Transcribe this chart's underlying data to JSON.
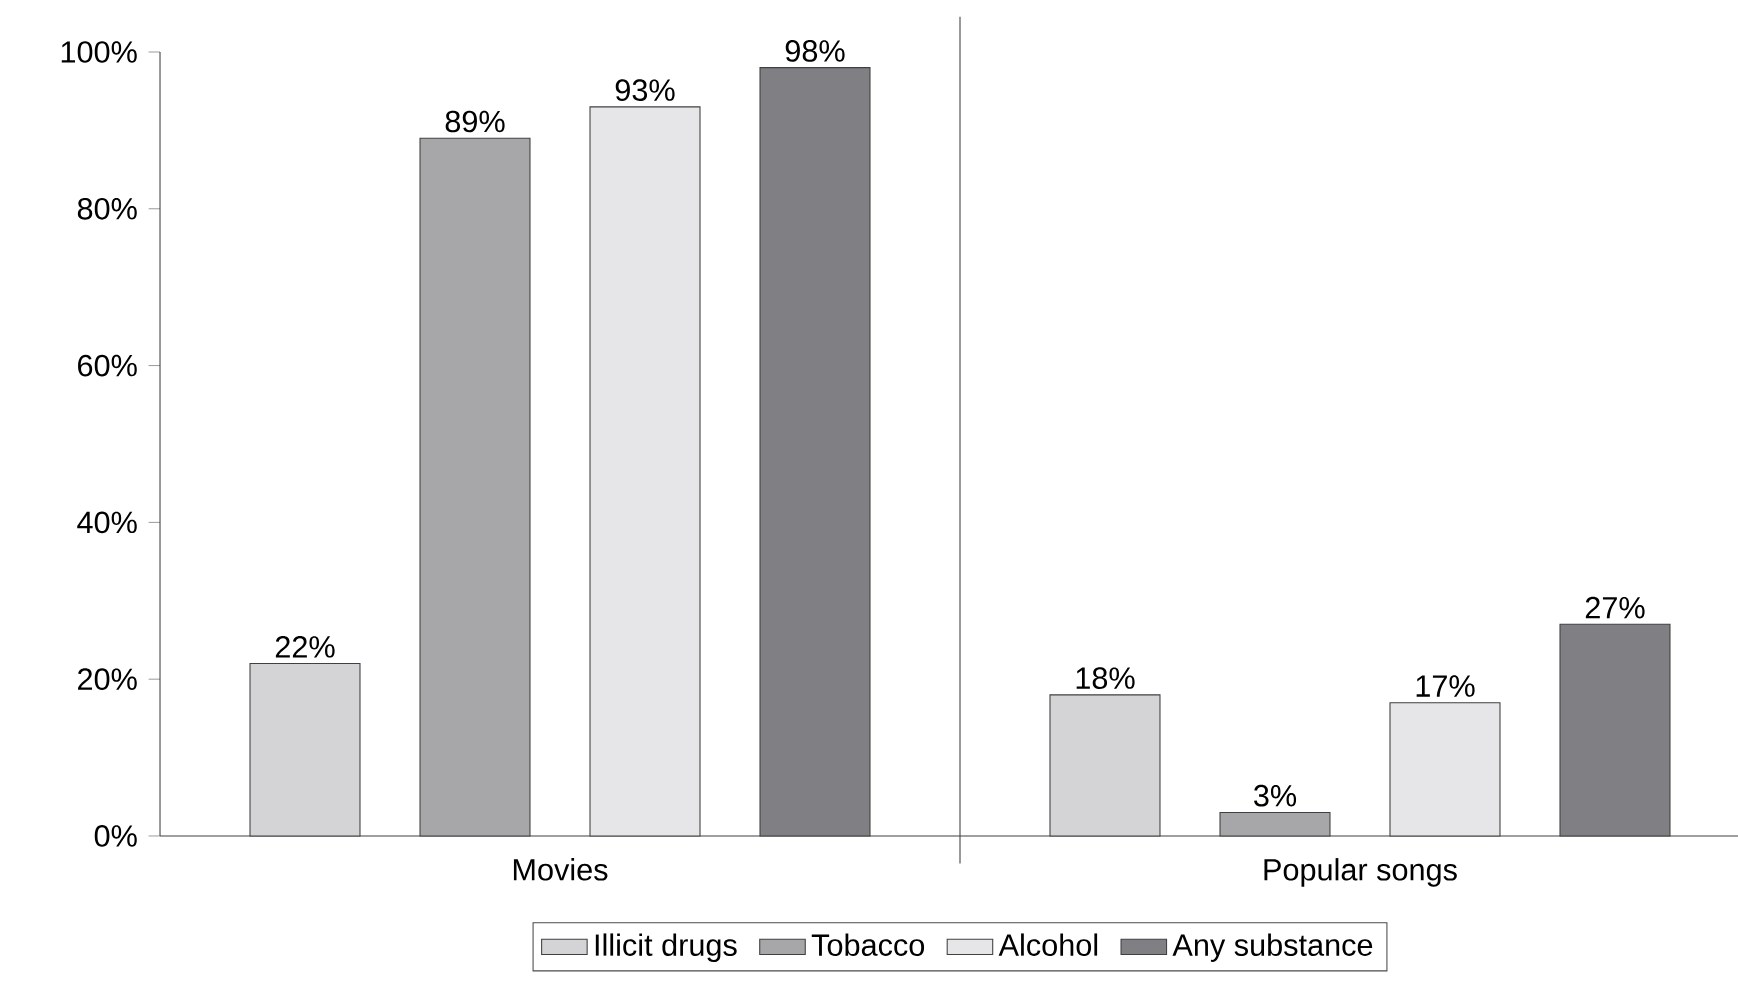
{
  "chart_data": {
    "type": "bar",
    "categories": [
      "Movies",
      "Popular songs"
    ],
    "series": [
      {
        "name": "Illicit drugs",
        "color": "#d4d4d6",
        "values": [
          22,
          18
        ],
        "value_labels": [
          "22%",
          "18%"
        ]
      },
      {
        "name": "Tobacco",
        "color": "#a7a7aa",
        "values": [
          89,
          3
        ],
        "value_labels": [
          "89%",
          "3%"
        ]
      },
      {
        "name": "Alcohol",
        "color": "#e6e6e8",
        "values": [
          93,
          17
        ],
        "value_labels": [
          "93%",
          "17%"
        ]
      },
      {
        "name": "Any substance",
        "color": "#808084",
        "values": [
          98,
          27
        ],
        "value_labels": [
          "98%",
          "27%"
        ]
      }
    ],
    "ylim": [
      0,
      100
    ],
    "yticks": [
      {
        "value": 0,
        "label": "0%"
      },
      {
        "value": 20,
        "label": "20%"
      },
      {
        "value": 40,
        "label": "40%"
      },
      {
        "value": 60,
        "label": "60%"
      },
      {
        "value": 80,
        "label": "80%"
      },
      {
        "value": 100,
        "label": "100%"
      }
    ],
    "grid": false,
    "legend": "bottom"
  }
}
